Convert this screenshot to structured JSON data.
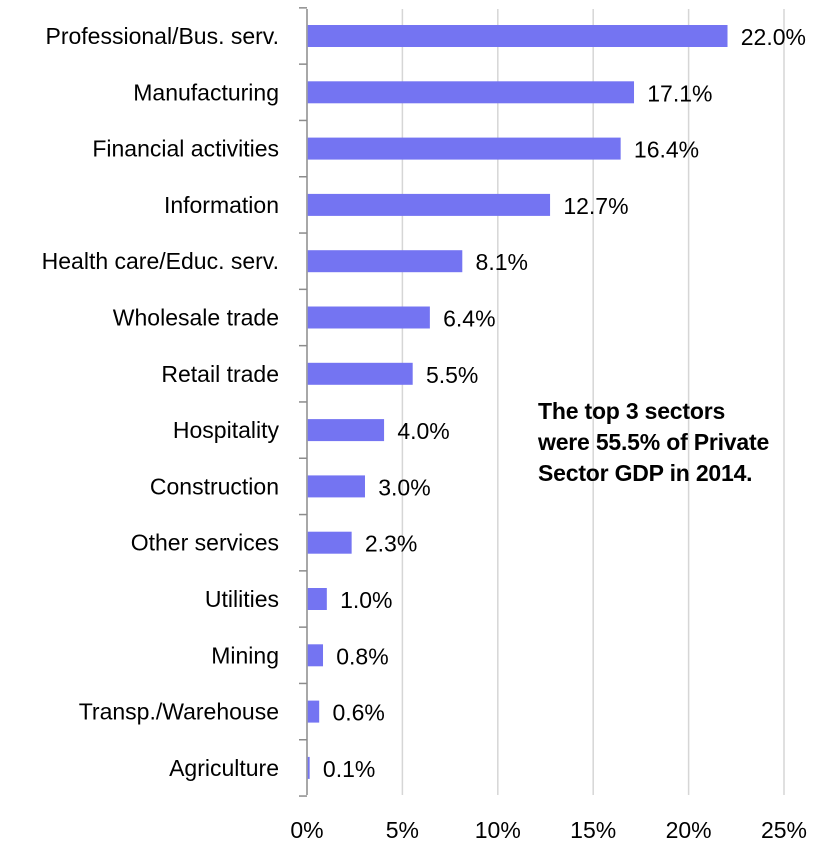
{
  "chart_data": {
    "type": "bar",
    "orientation": "horizontal",
    "categories": [
      "Professional/Bus. serv.",
      "Manufacturing",
      "Financial activities",
      "Information",
      "Health care/Educ. serv.",
      "Wholesale trade",
      "Retail trade",
      "Hospitality",
      "Construction",
      "Other services",
      "Utilities",
      "Mining",
      "Transp./Warehouse",
      "Agriculture"
    ],
    "values": [
      22.0,
      17.1,
      16.4,
      12.7,
      8.1,
      6.4,
      5.5,
      4.0,
      3.0,
      2.3,
      1.0,
      0.8,
      0.6,
      0.1
    ],
    "value_labels": [
      "22.0%",
      "17.1%",
      "16.4%",
      "12.7%",
      "8.1%",
      "6.4%",
      "5.5%",
      "4.0%",
      "3.0%",
      "2.3%",
      "1.0%",
      "0.8%",
      "0.6%",
      "0.1%"
    ],
    "xlim": [
      0,
      25
    ],
    "x_ticks": [
      0,
      5,
      10,
      15,
      20,
      25
    ],
    "x_tick_labels": [
      "0%",
      "5%",
      "10%",
      "15%",
      "20%",
      "25%"
    ],
    "grid": true,
    "title": "",
    "xlabel": "",
    "ylabel": "",
    "annotation": [
      "The top 3 sectors",
      "were 55.5% of Private",
      "Sector GDP in 2014."
    ],
    "colors": {
      "bar": "#7474F2",
      "grid": "#D6D6D6",
      "axis": "#8C8C8C",
      "text": "#000000"
    }
  }
}
